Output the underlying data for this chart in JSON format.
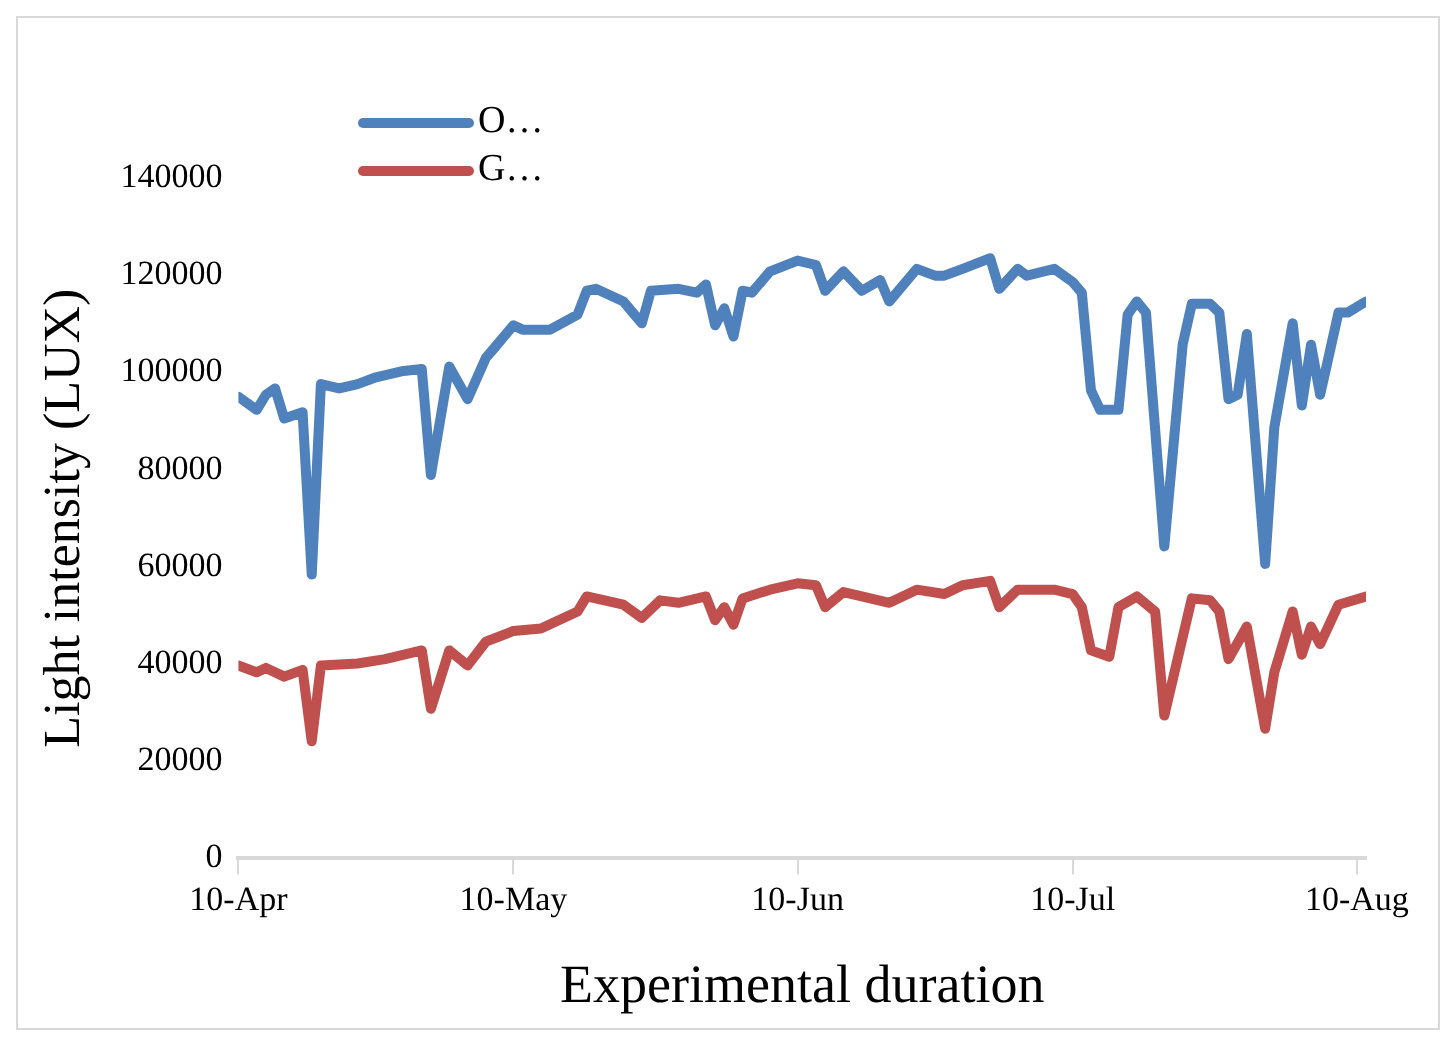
{
  "chart_data": {
    "type": "line",
    "xlabel": "Experimental duration",
    "ylabel": "Light intensity (LUX)",
    "xlim": [
      "--04-10",
      "--08-11"
    ],
    "xticks": [
      {
        "value": "--04-10",
        "label": "10-Apr"
      },
      {
        "value": "--05-10",
        "label": "10-May"
      },
      {
        "value": "--06-10",
        "label": "10-Jun"
      },
      {
        "value": "--07-10",
        "label": "10-Jul"
      },
      {
        "value": "--08-10",
        "label": "10-Aug"
      }
    ],
    "ylim": [
      0,
      140000
    ],
    "yticks": [
      0,
      20000,
      40000,
      60000,
      80000,
      100000,
      120000,
      140000
    ],
    "grid": false,
    "legend": "top left",
    "marker": "none",
    "line_style": "solid",
    "series": [
      {
        "name": "O…",
        "color": "#4f81bd",
        "x": [
          "--04-10",
          "--04-12",
          "--04-13",
          "--04-14",
          "--04-15",
          "--04-17",
          "--04-18",
          "--04-19",
          "--04-21",
          "--04-23",
          "--04-25",
          "--04-28",
          "--04-30",
          "--05-01",
          "--05-03",
          "--05-05",
          "--05-07",
          "--05-08",
          "--05-10",
          "--05-11",
          "--05-14",
          "--05-17",
          "--05-18",
          "--05-19",
          "--05-22",
          "--05-24",
          "--05-25",
          "--05-28",
          "--05-30",
          "--05-31",
          "--06-01",
          "--06-02",
          "--06-03",
          "--06-04",
          "--06-05",
          "--06-07",
          "--06-10",
          "--06-12",
          "--06-13",
          "--06-15",
          "--06-17",
          "--06-19",
          "--06-20",
          "--06-23",
          "--06-25",
          "--06-26",
          "--06-28",
          "--07-01",
          "--07-02",
          "--07-04",
          "--07-05",
          "--07-08",
          "--07-10",
          "--07-11",
          "--07-12",
          "--07-13",
          "--07-15",
          "--07-16",
          "--07-17",
          "--07-18",
          "--07-20",
          "--07-22",
          "--07-23",
          "--07-25",
          "--07-26",
          "--07-27",
          "--07-28",
          "--07-29",
          "--07-31",
          "--08-01",
          "--08-03",
          "--08-04",
          "--08-05",
          "--08-06",
          "--08-08",
          "--08-09",
          "--08-11"
        ],
        "values": [
          95000,
          92300,
          95400,
          96700,
          90500,
          91800,
          58400,
          97600,
          96700,
          97600,
          99000,
          100300,
          100700,
          78900,
          101200,
          94500,
          103000,
          105200,
          109700,
          108800,
          108800,
          111900,
          116800,
          117200,
          114600,
          110100,
          116800,
          117200,
          116400,
          118100,
          109700,
          113200,
          107400,
          116800,
          116400,
          120800,
          123000,
          122100,
          116800,
          120800,
          116800,
          119000,
          114600,
          121300,
          119900,
          119900,
          121300,
          123500,
          117200,
          121300,
          119900,
          121300,
          118600,
          116400,
          96300,
          92300,
          92300,
          111900,
          114600,
          112300,
          64200,
          105700,
          114100,
          114100,
          112300,
          94500,
          95400,
          107900,
          60600,
          88700,
          110100,
          93200,
          105700,
          95400,
          112300,
          112300,
          114600
        ]
      },
      {
        "name": "G…",
        "color": "#c0504d",
        "x": [
          "--04-10",
          "--04-12",
          "--04-13",
          "--04-15",
          "--04-17",
          "--04-18",
          "--04-19",
          "--04-23",
          "--04-26",
          "--04-30",
          "--05-01",
          "--05-03",
          "--05-05",
          "--05-07",
          "--05-10",
          "--05-13",
          "--05-17",
          "--05-18",
          "--05-22",
          "--05-24",
          "--05-26",
          "--05-28",
          "--05-31",
          "--06-01",
          "--06-02",
          "--06-03",
          "--06-04",
          "--06-07",
          "--06-10",
          "--06-12",
          "--06-13",
          "--06-15",
          "--06-17",
          "--06-20",
          "--06-23",
          "--06-26",
          "--06-28",
          "--07-01",
          "--07-02",
          "--07-04",
          "--07-08",
          "--07-10",
          "--07-11",
          "--07-12",
          "--07-14",
          "--07-15",
          "--07-17",
          "--07-19",
          "--07-20",
          "--07-22",
          "--07-23",
          "--07-25",
          "--07-26",
          "--07-27",
          "--07-29",
          "--07-31",
          "--08-01",
          "--08-03",
          "--08-04",
          "--08-05",
          "--08-06",
          "--08-08",
          "--08-11"
        ],
        "values": [
          39700,
          38300,
          39200,
          37400,
          38800,
          24100,
          39700,
          40100,
          41000,
          42800,
          30800,
          42800,
          39700,
          44600,
          46800,
          47300,
          50800,
          53900,
          52200,
          49500,
          53100,
          52600,
          53900,
          49000,
          51700,
          48100,
          53500,
          55300,
          56600,
          56200,
          51700,
          54800,
          53900,
          52600,
          55300,
          54400,
          56200,
          57100,
          51700,
          55300,
          55300,
          54400,
          51700,
          42800,
          41500,
          51700,
          53900,
          50800,
          29400,
          45500,
          53500,
          53100,
          50800,
          41000,
          47700,
          26700,
          38300,
          50800,
          41900,
          47700,
          44100,
          52200,
          53900
        ]
      }
    ]
  }
}
